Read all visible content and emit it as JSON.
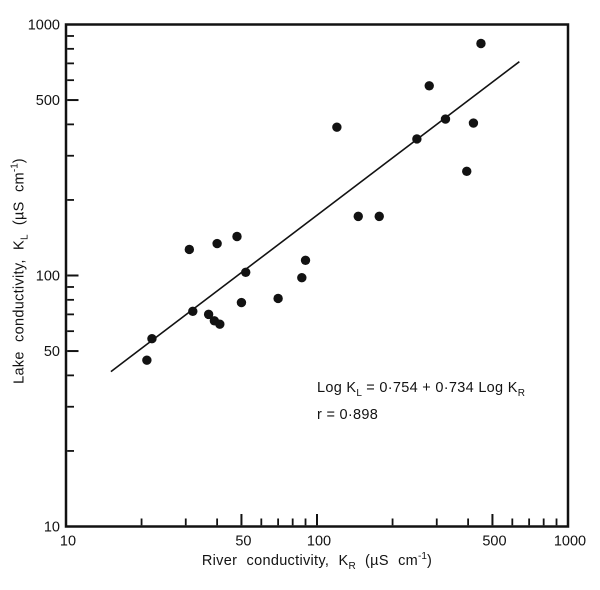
{
  "colors": {
    "background": "#ffffff",
    "ink": "#121212"
  },
  "axes": {
    "x": {
      "title_pre": "River conductivity,  K",
      "title_sub": "R",
      "title_unit": " (µS cm",
      "title_sup": "-1",
      "title_close": ")"
    },
    "y": {
      "title_pre": "Lake conductivity,  K",
      "title_sub": "L",
      "title_unit": " (µS cm",
      "title_sup": "-1",
      "title_close": ")"
    }
  },
  "annotation": {
    "eq_pre": "Log K",
    "eq_sub_l": "L",
    "eq_mid": " = 0·754 + 0·734 Log K",
    "eq_sub_r": "R",
    "r_line": "r = 0·898"
  },
  "chart_data": {
    "type": "scatter",
    "title": "",
    "xlabel": "River conductivity, K_R (µS cm⁻¹)",
    "ylabel": "Lake conductivity, K_L (µS cm⁻¹)",
    "x_scale": "log",
    "y_scale": "log",
    "xlim": [
      10,
      1000
    ],
    "ylim": [
      10,
      1000
    ],
    "grid": false,
    "legend": "none",
    "points": [
      [
        31,
        127
      ],
      [
        40,
        134
      ],
      [
        48,
        143
      ],
      [
        52,
        103
      ],
      [
        90,
        115
      ],
      [
        87,
        98
      ],
      [
        50,
        78
      ],
      [
        70,
        81
      ],
      [
        32,
        72
      ],
      [
        37,
        70
      ],
      [
        39,
        66
      ],
      [
        41,
        64
      ],
      [
        22,
        56
      ],
      [
        21,
        46
      ],
      [
        450,
        840
      ],
      [
        280,
        570
      ],
      [
        325,
        420
      ],
      [
        420,
        405
      ],
      [
        120,
        390
      ],
      [
        250,
        350
      ],
      [
        395,
        260
      ],
      [
        146,
        172
      ],
      [
        177,
        172
      ]
    ],
    "trend_line": {
      "x1": 15.1,
      "y1": 41.4,
      "x2": 640,
      "y2": 711
    },
    "regression": {
      "equation": "Log K_L = 0.754 + 0.734 Log K_R",
      "intercept": 0.754,
      "slope": 0.734,
      "r": 0.898
    },
    "x_axis": {
      "labeled_ticks": [
        {
          "v": 10,
          "label": "10",
          "tick": false
        },
        {
          "v": 50,
          "label": "50",
          "tick": true
        },
        {
          "v": 100,
          "label": "100",
          "tick": true
        },
        {
          "v": 500,
          "label": "500",
          "tick": true
        },
        {
          "v": 1000,
          "label": "1000",
          "tick": false
        }
      ],
      "minor_ticks": [
        20,
        30,
        40,
        60,
        70,
        80,
        90,
        200,
        300,
        400,
        600,
        700,
        800,
        900
      ]
    },
    "y_axis": {
      "labeled_ticks": [
        {
          "v": 1000,
          "label": "1000",
          "tick": false
        },
        {
          "v": 500,
          "label": "500",
          "tick": true
        },
        {
          "v": 100,
          "label": "100",
          "tick": true
        },
        {
          "v": 50,
          "label": "50",
          "tick": true
        },
        {
          "v": 10,
          "label": "10",
          "tick": false
        }
      ],
      "minor_ticks": [
        900,
        800,
        700,
        600,
        400,
        300,
        200,
        90,
        80,
        70,
        60,
        40,
        30,
        20
      ]
    }
  }
}
